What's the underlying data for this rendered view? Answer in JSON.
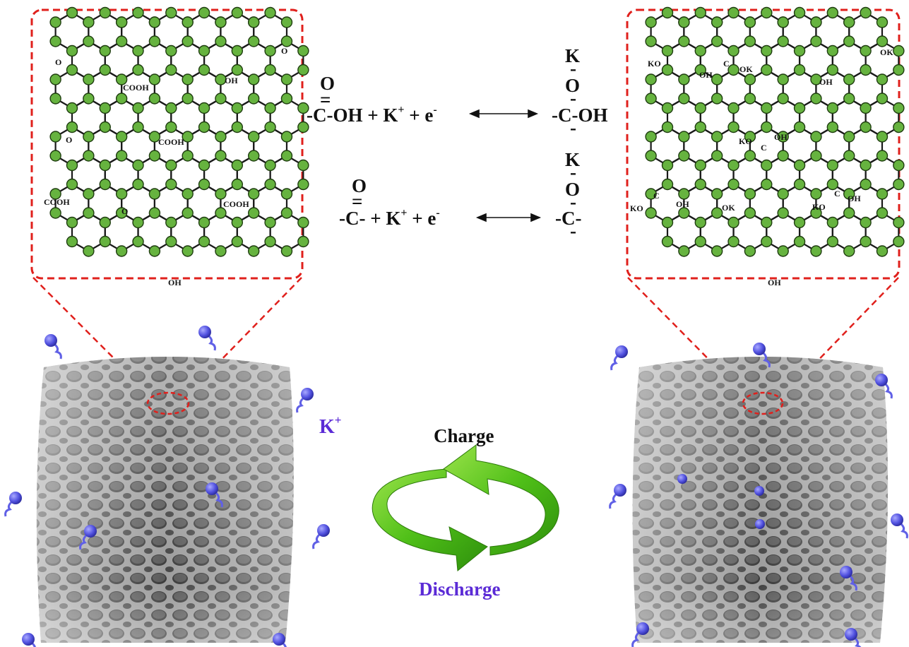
{
  "colors": {
    "inset_border": "#e0201c",
    "carbon_atom": "#66b33f",
    "carbon_atom_edge": "#1f3d10",
    "bond": "#1a1a1a",
    "potassium_ion": "#6060e6",
    "arrow_green": "#58c41c",
    "discharge_text": "#5b2bd6",
    "k_label": "#5b2bd6",
    "framework_gray": "#8a8a8a"
  },
  "left_inset": {
    "groups": [
      "O",
      "COOH",
      "O",
      "OH",
      "O",
      "COOH",
      "COOH",
      "O",
      "COOH",
      "OH"
    ]
  },
  "right_inset": {
    "groups": [
      "KO",
      "OH",
      "C",
      "OK",
      "OK",
      "OH",
      "KO",
      "C",
      "OH",
      "KO",
      "C",
      "OH",
      "OK",
      "KO",
      "C",
      "OH",
      "OH"
    ]
  },
  "reaction1": {
    "left_top": "O",
    "left_mid": "=",
    "left_main": "-C-OH + K",
    "superscript": "+",
    "after_sup": " + e",
    "minus": "-",
    "right_top": "K",
    "right_o": "O",
    "right_main": "-C-OH",
    "bond_char": "-"
  },
  "reaction2": {
    "left_top": "O",
    "left_mid": "=",
    "left_main": "-C-  + K",
    "superscript": "+",
    "after_sup": " + e",
    "minus": "-",
    "right_top": "K",
    "right_o": "O",
    "right_main": "-C-",
    "bond_char": "-"
  },
  "labels": {
    "k_plus_main": "K",
    "k_plus_sup": "+",
    "charge": "Charge",
    "discharge": "Discharge"
  }
}
